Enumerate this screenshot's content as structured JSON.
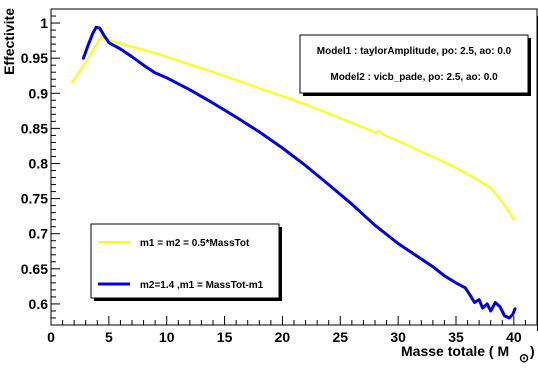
{
  "chart_data": {
    "type": "line",
    "title": "",
    "xlabel": "Masse totale ( M",
    "xlabel_unit_symbol": "⊙",
    "ylabel": "Effectivite",
    "xlim": [
      0,
      42
    ],
    "ylim": [
      0.57,
      1.02
    ],
    "x_ticks": [
      0,
      5,
      10,
      15,
      20,
      25,
      30,
      35,
      40
    ],
    "y_ticks": [
      0.6,
      0.65,
      0.7,
      0.75,
      0.8,
      0.85,
      0.9,
      0.95,
      1
    ],
    "y_tick_labels": [
      "0.6",
      "0.65",
      "0.7",
      "0.75",
      "0.8",
      "0.85",
      "0.9",
      "0.95",
      "1"
    ],
    "grid": false,
    "legend_position": "bottom-left",
    "series": [
      {
        "name": "m1 = m2 = 0.5*MassTot",
        "color": "#ffff00",
        "line_width": 2,
        "points": [
          [
            1.8,
            0.915
          ],
          [
            2.5,
            0.932
          ],
          [
            3.0,
            0.945
          ],
          [
            3.5,
            0.958
          ],
          [
            4.0,
            0.972
          ],
          [
            4.3,
            0.98
          ],
          [
            5,
            0.976
          ],
          [
            6,
            0.971
          ],
          [
            7,
            0.966
          ],
          [
            8,
            0.962
          ],
          [
            9,
            0.957
          ],
          [
            10,
            0.952
          ],
          [
            12,
            0.941
          ],
          [
            14,
            0.93
          ],
          [
            16,
            0.919
          ],
          [
            18,
            0.907
          ],
          [
            20,
            0.896
          ],
          [
            22,
            0.884
          ],
          [
            24,
            0.871
          ],
          [
            26,
            0.858
          ],
          [
            27.5,
            0.848
          ],
          [
            28.0,
            0.843
          ],
          [
            28.3,
            0.847
          ],
          [
            28.7,
            0.841
          ],
          [
            30,
            0.832
          ],
          [
            32,
            0.817
          ],
          [
            34,
            0.802
          ],
          [
            36,
            0.785
          ],
          [
            38,
            0.765
          ],
          [
            39,
            0.745
          ],
          [
            40,
            0.72
          ]
        ]
      },
      {
        "name": "m2=1.4 ,m1 = MassTot-m1",
        "color": "#0000dd",
        "line_width": 3,
        "points": [
          [
            2.8,
            0.95
          ],
          [
            3.2,
            0.968
          ],
          [
            3.6,
            0.985
          ],
          [
            3.9,
            0.994
          ],
          [
            4.2,
            0.993
          ],
          [
            4.6,
            0.982
          ],
          [
            5,
            0.972
          ],
          [
            6,
            0.963
          ],
          [
            7,
            0.952
          ],
          [
            8,
            0.94
          ],
          [
            9,
            0.929
          ],
          [
            10,
            0.922
          ],
          [
            12,
            0.905
          ],
          [
            14,
            0.886
          ],
          [
            16,
            0.866
          ],
          [
            18,
            0.845
          ],
          [
            20,
            0.822
          ],
          [
            22,
            0.797
          ],
          [
            24,
            0.77
          ],
          [
            26,
            0.742
          ],
          [
            28,
            0.712
          ],
          [
            30,
            0.686
          ],
          [
            32,
            0.664
          ],
          [
            33,
            0.653
          ],
          [
            34,
            0.64
          ],
          [
            35,
            0.63
          ],
          [
            35.8,
            0.623
          ],
          [
            36.2,
            0.613
          ],
          [
            36.6,
            0.602
          ],
          [
            37.0,
            0.606
          ],
          [
            37.3,
            0.594
          ],
          [
            37.7,
            0.6
          ],
          [
            38.0,
            0.59
          ],
          [
            38.4,
            0.602
          ],
          [
            38.8,
            0.596
          ],
          [
            39.2,
            0.583
          ],
          [
            39.6,
            0.58
          ],
          [
            39.9,
            0.585
          ],
          [
            40.1,
            0.593
          ]
        ]
      }
    ],
    "model_box": {
      "line1": "Model1 : taylorAmplitude, po: 2.5, ao: 0.0",
      "line2": "Model2 : vicb_pade, po: 2.5, ao: 0.0"
    }
  }
}
